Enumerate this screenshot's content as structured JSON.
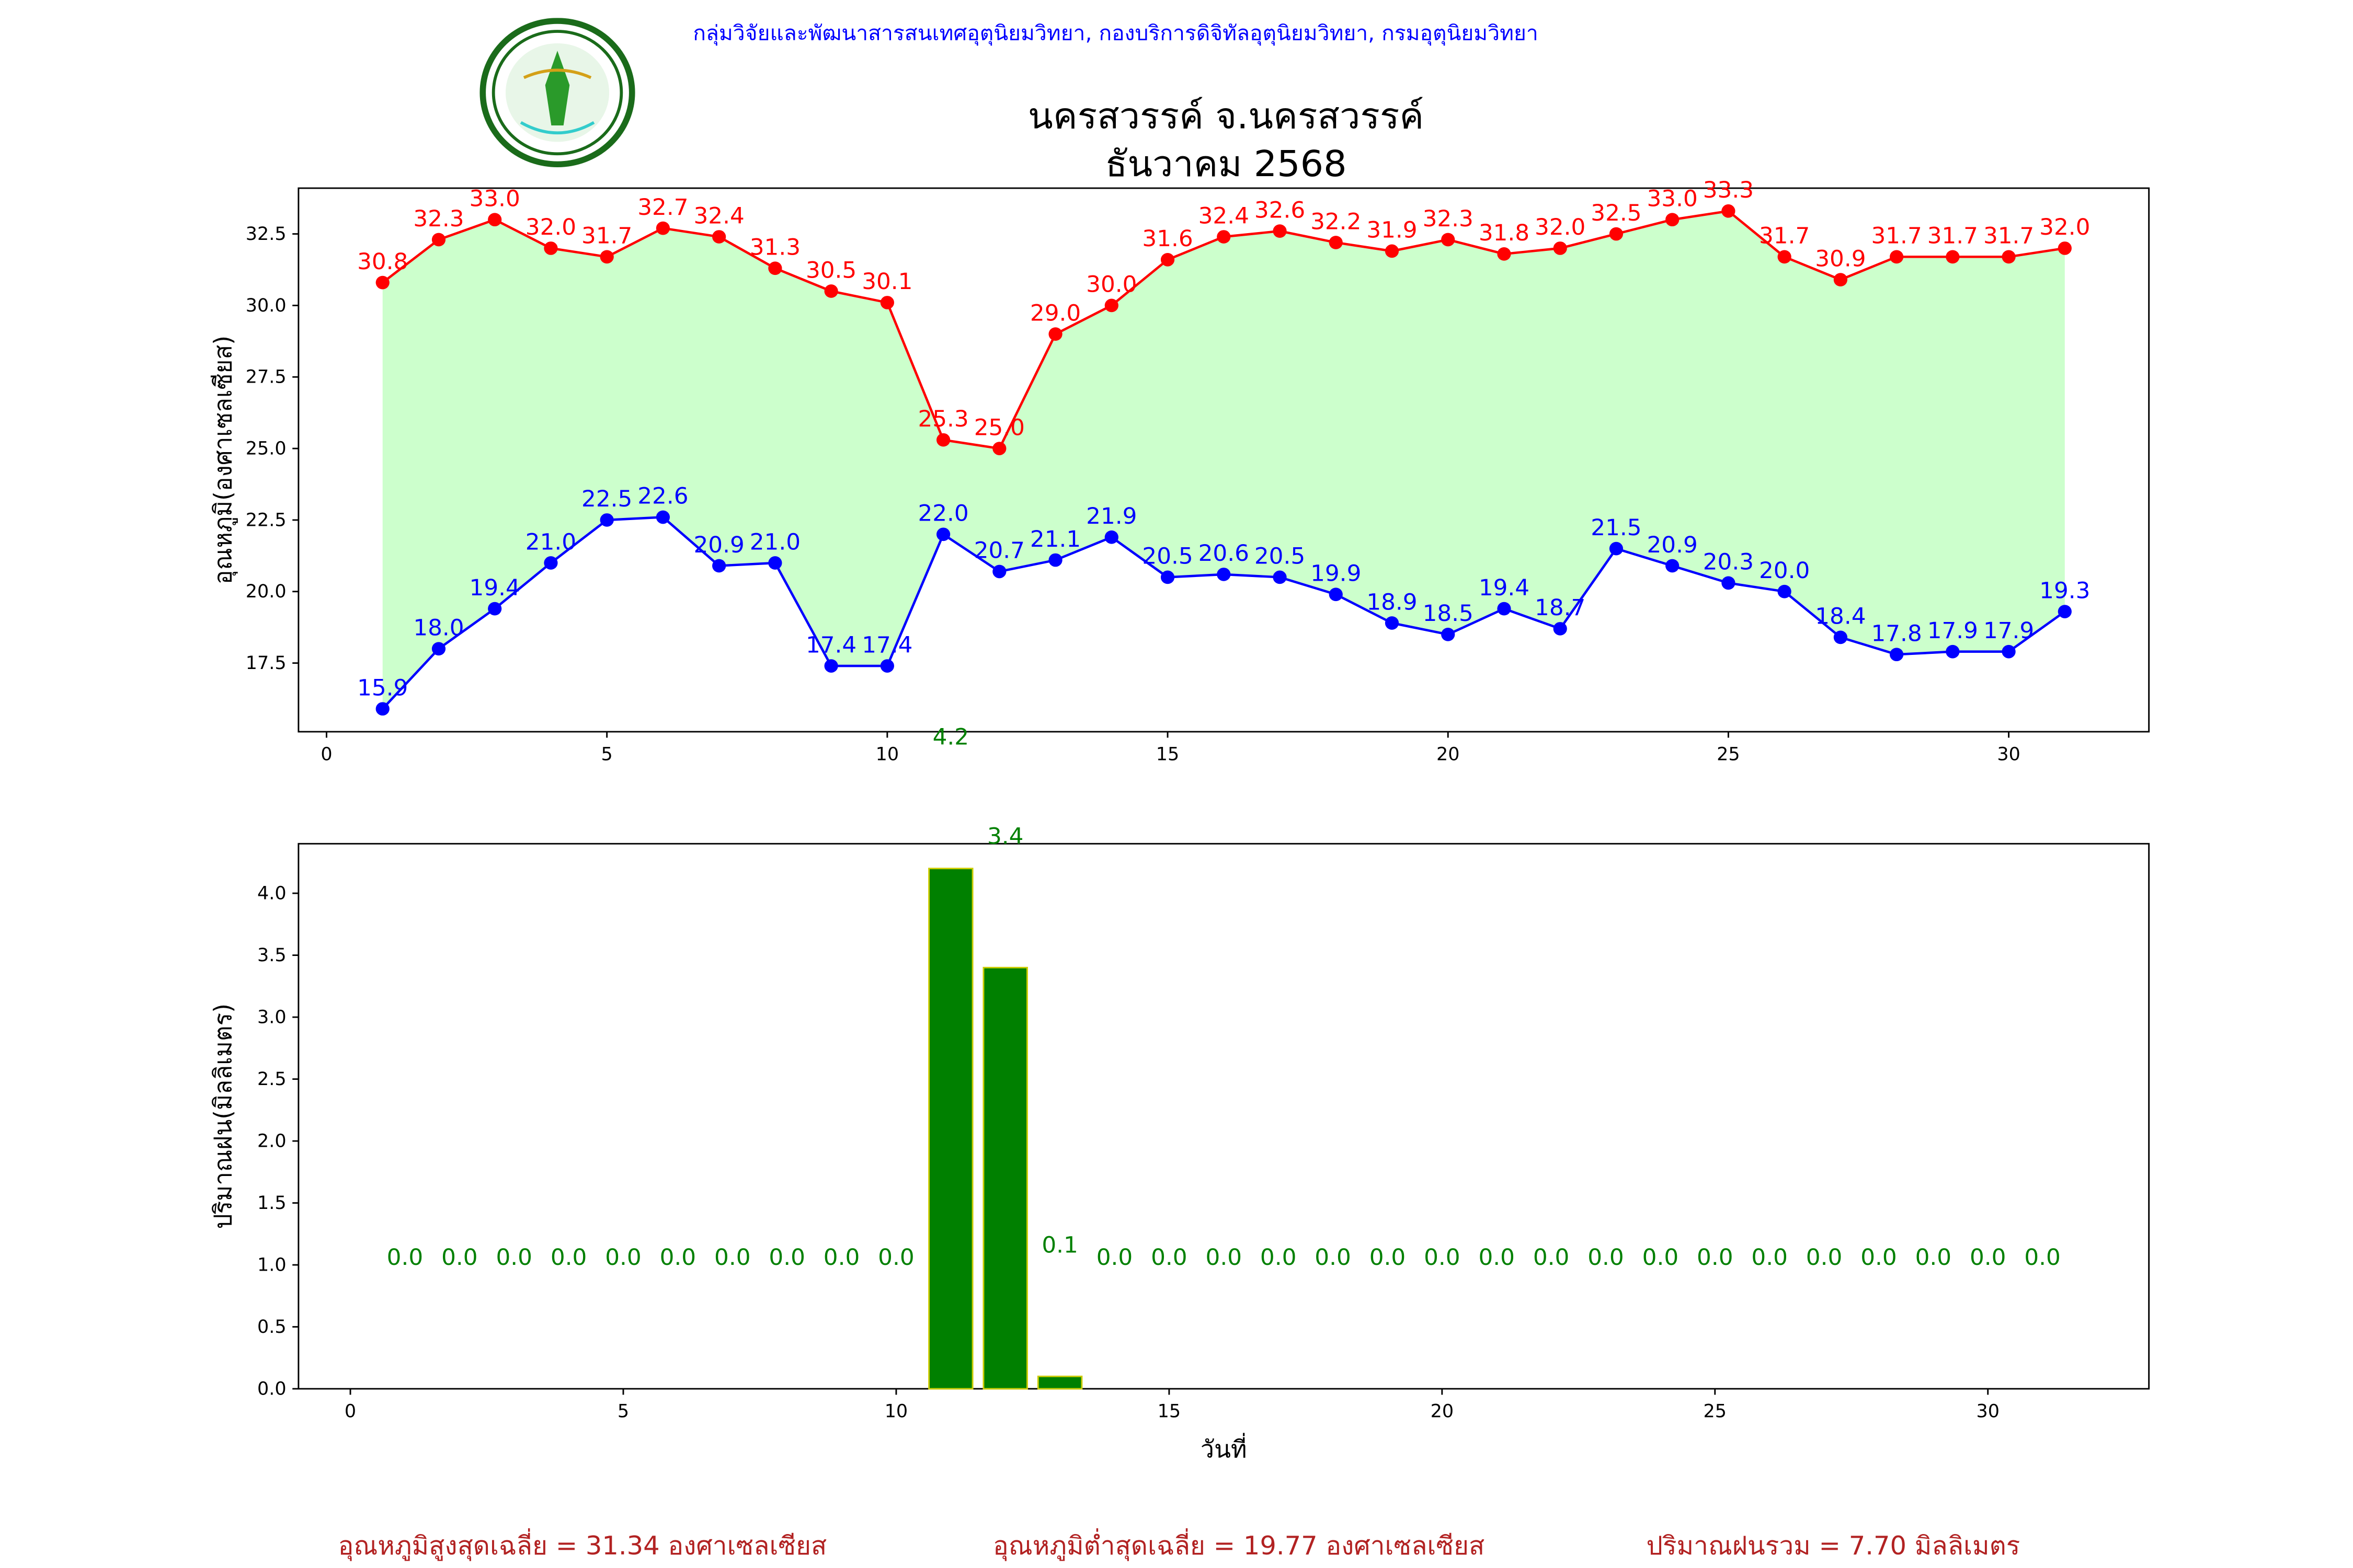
{
  "header": {
    "organization": "กลุ่มวิจัยและพัฒนาสารสนเทศอุตุนิยมวิทยา, กองบริการดิจิทัลอุตุนิยมวิทยา, กรมอุตุนิยมวิทยา",
    "station_title": "นครสวรรค์  จ.นครสวรรค์",
    "month_title": "ธันวาคม 2568",
    "logo_text": "กรมอุตุนิยมวิทยา METEOROLOGICAL DEPARTMENT"
  },
  "colors": {
    "high": "#ff0000",
    "low": "#0000ff",
    "fill": "#ccffcc",
    "rain": "#008000",
    "rain_edge": "#cccc00",
    "footer": "#b22222"
  },
  "chart_data": [
    {
      "type": "line",
      "ylabel": "อุณหภูมิ(องศาเซลเซียส)",
      "xlim": [
        -0.5,
        32.5
      ],
      "ylim": [
        15.1,
        34.1
      ],
      "xticks": [
        0,
        5,
        10,
        15,
        20,
        25,
        30
      ],
      "yticks": [
        "17.5",
        "20.0",
        "22.5",
        "25.0",
        "27.5",
        "30.0",
        "32.5"
      ],
      "x": [
        1,
        2,
        3,
        4,
        5,
        6,
        7,
        8,
        9,
        10,
        11,
        12,
        13,
        14,
        15,
        16,
        17,
        18,
        19,
        20,
        21,
        22,
        23,
        24,
        25,
        26,
        27,
        28,
        29,
        30,
        31
      ],
      "series": [
        {
          "name": "high",
          "values": [
            30.8,
            32.3,
            33.0,
            32.0,
            31.7,
            32.7,
            32.4,
            31.3,
            30.5,
            30.1,
            25.3,
            25.0,
            29.0,
            30.0,
            31.6,
            32.4,
            32.6,
            32.2,
            31.9,
            32.3,
            31.8,
            32.0,
            32.5,
            33.0,
            33.3,
            31.7,
            30.9,
            31.7,
            31.7,
            31.7,
            32.0
          ]
        },
        {
          "name": "low",
          "values": [
            15.9,
            18.0,
            19.4,
            21.0,
            22.5,
            22.6,
            20.9,
            21.0,
            17.4,
            17.4,
            22.0,
            20.7,
            21.1,
            21.9,
            20.5,
            20.6,
            20.5,
            19.9,
            18.9,
            18.5,
            19.4,
            18.7,
            21.5,
            20.9,
            20.3,
            20.0,
            18.4,
            17.8,
            17.9,
            17.9,
            19.3
          ]
        }
      ]
    },
    {
      "type": "bar",
      "xlabel": "วันที่",
      "ylabel": "ปริมาณฝน(มิลลิเมตร)",
      "xlim": [
        -0.95,
        32.95
      ],
      "ylim": [
        0,
        4.4
      ],
      "xticks": [
        0,
        5,
        10,
        15,
        20,
        25,
        30
      ],
      "yticks": [
        "0.0",
        "0.5",
        "1.0",
        "1.5",
        "2.0",
        "2.5",
        "3.0",
        "3.5",
        "4.0"
      ],
      "x": [
        1,
        2,
        3,
        4,
        5,
        6,
        7,
        8,
        9,
        10,
        11,
        12,
        13,
        14,
        15,
        16,
        17,
        18,
        19,
        20,
        21,
        22,
        23,
        24,
        25,
        26,
        27,
        28,
        29,
        30,
        31
      ],
      "values": [
        0,
        0,
        0,
        0,
        0,
        0,
        0,
        0,
        0,
        0,
        4.2,
        3.4,
        0.1,
        0,
        0,
        0,
        0,
        0,
        0,
        0,
        0,
        0,
        0,
        0,
        0,
        0,
        0,
        0,
        0,
        0,
        0
      ]
    }
  ],
  "footer": {
    "avg_high": "อุณหภูมิสูงสุดเฉลี่ย = 31.34 องศาเซลเซียส",
    "avg_low": "อุณหภูมิต่ำสุดเฉลี่ย = 19.77 องศาเซลเซียส",
    "total_rain": "ปริมาณฝนรวม = 7.70 มิลลิเมตร"
  }
}
